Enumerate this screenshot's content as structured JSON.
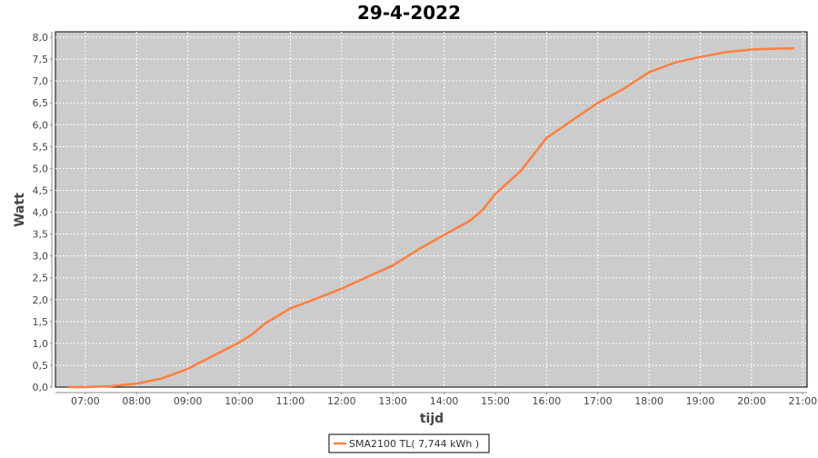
{
  "chart_data": {
    "type": "line",
    "title": "29-4-2022",
    "xlabel": "tijd",
    "ylabel": "Watt",
    "xlim": [
      "06:25",
      "21:05"
    ],
    "ylim": [
      0,
      8
    ],
    "x_ticks": [
      "07:00",
      "08:00",
      "09:00",
      "10:00",
      "11:00",
      "12:00",
      "13:00",
      "14:00",
      "15:00",
      "16:00",
      "17:00",
      "18:00",
      "19:00",
      "20:00",
      "21:00"
    ],
    "y_ticks": [
      "0,0",
      "0,5",
      "1,0",
      "1,5",
      "2,0",
      "2,5",
      "3,0",
      "3,5",
      "4,0",
      "4,5",
      "5,0",
      "5,5",
      "6,0",
      "6,5",
      "7,0",
      "7,5",
      "8,0"
    ],
    "grid": true,
    "legend_placement": "bottom",
    "colors": {
      "series": "#ff7f3f",
      "plot_background": "#cccccc",
      "grid": "#ffffff"
    },
    "series": [
      {
        "name": "SMA2100 TL( 7,744 kWh )",
        "x": [
          "06:40",
          "07:00",
          "07:30",
          "08:00",
          "08:30",
          "09:00",
          "09:30",
          "10:00",
          "10:15",
          "10:30",
          "11:00",
          "11:30",
          "12:00",
          "12:30",
          "13:00",
          "13:30",
          "14:00",
          "14:30",
          "14:45",
          "15:00",
          "15:30",
          "16:00",
          "16:30",
          "17:00",
          "17:30",
          "18:00",
          "18:30",
          "19:00",
          "19:30",
          "20:00",
          "20:30",
          "20:50"
        ],
        "values": [
          0,
          0,
          0.02,
          0.08,
          0.2,
          0.42,
          0.72,
          1.02,
          1.2,
          1.45,
          1.8,
          2.02,
          2.25,
          2.52,
          2.78,
          3.15,
          3.48,
          3.8,
          4.05,
          4.42,
          4.95,
          5.7,
          6.1,
          6.5,
          6.82,
          7.2,
          7.42,
          7.55,
          7.66,
          7.72,
          7.74,
          7.744
        ]
      }
    ]
  }
}
